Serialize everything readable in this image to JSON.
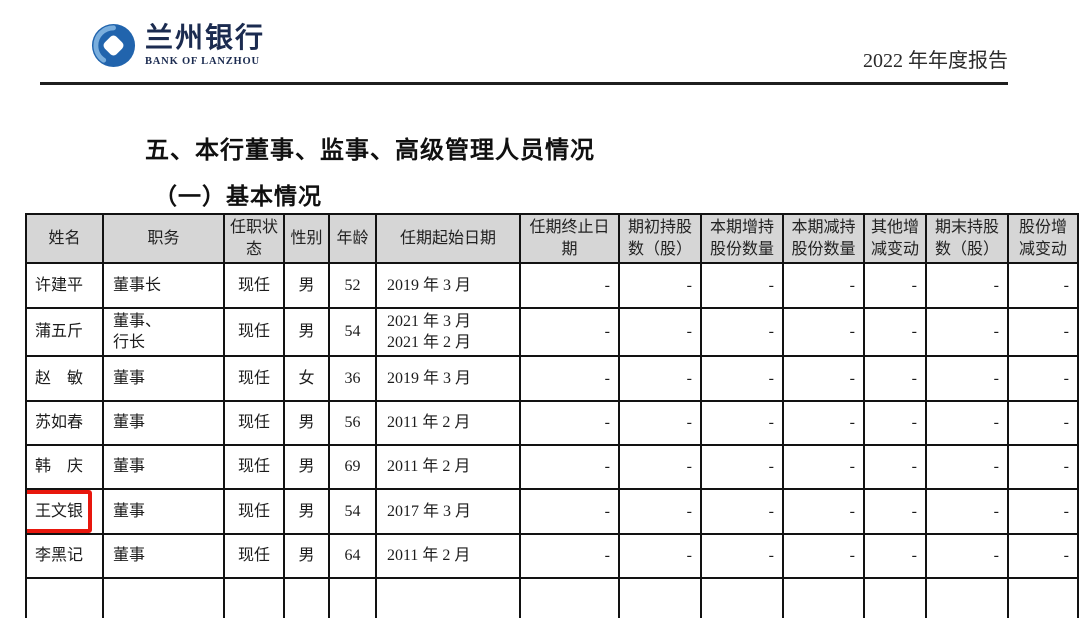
{
  "header": {
    "logo_cn": "兰州银行",
    "logo_en": "BANK OF LANZHOU",
    "report_title": "2022 年年度报告"
  },
  "section": {
    "title": "五、本行董事、监事、高级管理人员情况",
    "subtitle": "（一）基本情况"
  },
  "table": {
    "headers": [
      "姓名",
      "职务",
      "任职状\n态",
      "性别",
      "年龄",
      "任期起始日期",
      "任期终止日期",
      "期初持股\n数（股）",
      "本期增持\n股份数量",
      "本期减持\n股份数量",
      "其他增\n减变动",
      "期末持股\n数（股）",
      "股份增\n减变动"
    ],
    "rows": [
      {
        "name": "许建平",
        "position": "董事长",
        "status": "现任",
        "gender": "男",
        "age": "52",
        "term_start": "2019 年 3 月",
        "term_end": "-",
        "shares_begin": "-",
        "shares_inc": "-",
        "shares_dec": "-",
        "other_change": "-",
        "shares_end": "-",
        "share_change": "-",
        "highlighted": false
      },
      {
        "name": "蒲五斤",
        "position": "董事、\n行长",
        "status": "现任",
        "gender": "男",
        "age": "54",
        "term_start": "2021 年 3 月\n2021 年 2 月",
        "term_end": "-",
        "shares_begin": "-",
        "shares_inc": "-",
        "shares_dec": "-",
        "other_change": "-",
        "shares_end": "-",
        "share_change": "-",
        "highlighted": false
      },
      {
        "name": "赵　敏",
        "position": "董事",
        "status": "现任",
        "gender": "女",
        "age": "36",
        "term_start": "2019 年 3 月",
        "term_end": "-",
        "shares_begin": "-",
        "shares_inc": "-",
        "shares_dec": "-",
        "other_change": "-",
        "shares_end": "-",
        "share_change": "-",
        "highlighted": false
      },
      {
        "name": "苏如春",
        "position": "董事",
        "status": "现任",
        "gender": "男",
        "age": "56",
        "term_start": "2011 年 2 月",
        "term_end": "-",
        "shares_begin": "-",
        "shares_inc": "-",
        "shares_dec": "-",
        "other_change": "-",
        "shares_end": "-",
        "share_change": "-",
        "highlighted": false
      },
      {
        "name": "韩　庆",
        "position": "董事",
        "status": "现任",
        "gender": "男",
        "age": "69",
        "term_start": "2011 年 2 月",
        "term_end": "-",
        "shares_begin": "-",
        "shares_inc": "-",
        "shares_dec": "-",
        "other_change": "-",
        "shares_end": "-",
        "share_change": "-",
        "highlighted": false
      },
      {
        "name": "王文银",
        "position": "董事",
        "status": "现任",
        "gender": "男",
        "age": "54",
        "term_start": "2017 年 3 月",
        "term_end": "-",
        "shares_begin": "-",
        "shares_inc": "-",
        "shares_dec": "-",
        "other_change": "-",
        "shares_end": "-",
        "share_change": "-",
        "highlighted": true
      },
      {
        "name": "李黑记",
        "position": "董事",
        "status": "现任",
        "gender": "男",
        "age": "64",
        "term_start": "2011 年 2 月",
        "term_end": "-",
        "shares_begin": "-",
        "shares_inc": "-",
        "shares_dec": "-",
        "other_change": "-",
        "shares_end": "-",
        "share_change": "-",
        "highlighted": false
      }
    ]
  },
  "colors": {
    "highlight_red": "#e8170d",
    "table_header_bg": "#d6d6d6",
    "logo_blue": "#2164ad",
    "logo_light_blue": "#7aaedd",
    "logo_navy": "#1b2b50",
    "border_black": "#121212"
  }
}
